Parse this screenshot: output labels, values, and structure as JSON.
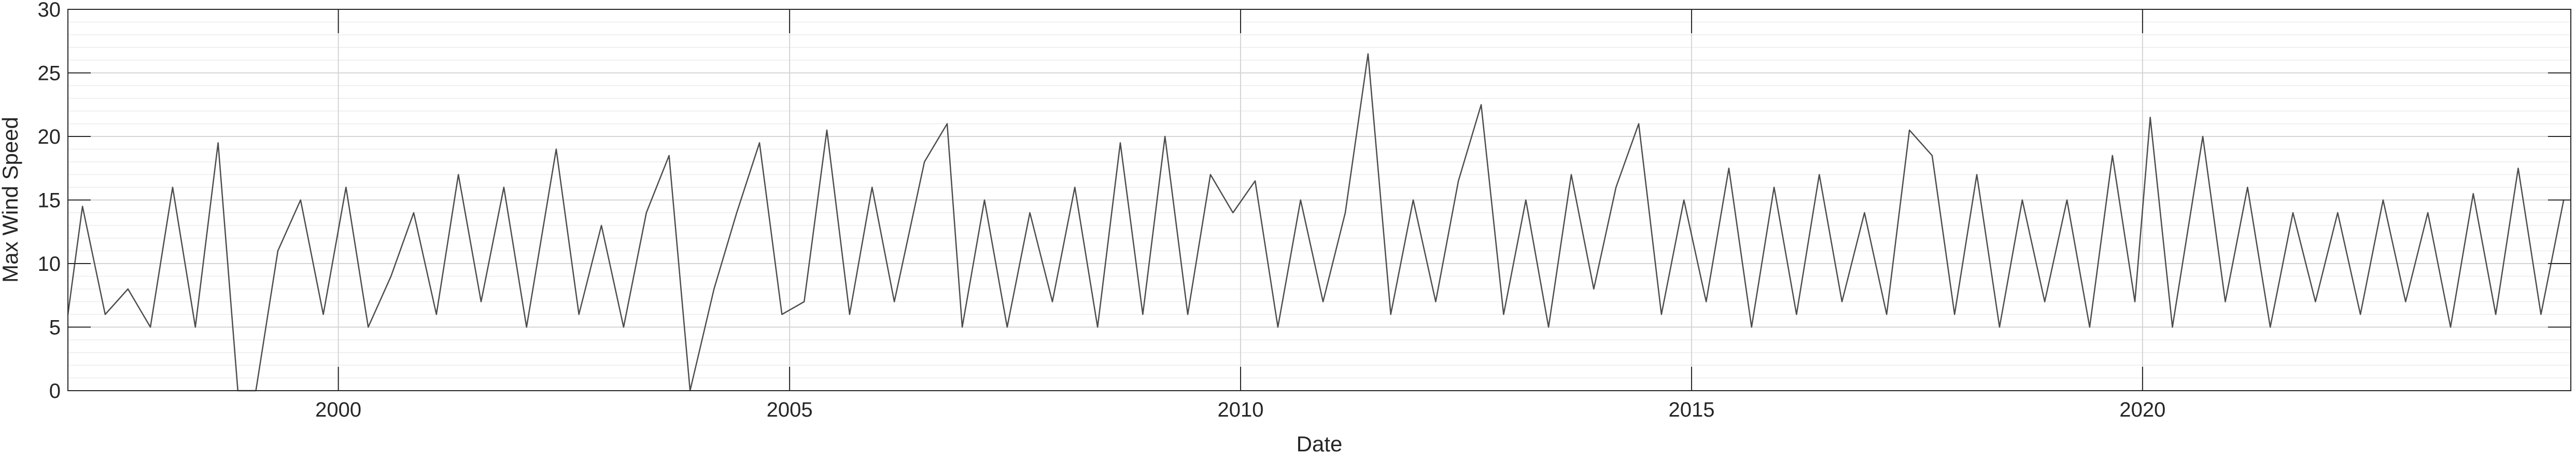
{
  "chart_data": {
    "type": "line",
    "title": "",
    "xlabel": "Date",
    "ylabel": "Max Wind Speed",
    "x_ticks": [
      "2000",
      "2005",
      "2010",
      "2015",
      "2020"
    ],
    "y_ticks": [
      "0",
      "5",
      "10",
      "15",
      "20",
      "25",
      "30"
    ],
    "xlim": [
      "1997-01-01",
      "2024-09-30"
    ],
    "ylim": [
      0,
      30
    ],
    "grid": true,
    "minor_grid": true,
    "legend": "none",
    "series": [
      {
        "color": "#4d4d4d",
        "points": [
          [
            "1997-01-01",
            6
          ],
          [
            "1997-03-01",
            14.5
          ],
          [
            "1997-06-01",
            6
          ],
          [
            "1997-09-01",
            8
          ],
          [
            "1997-12-01",
            5
          ],
          [
            "1998-03-01",
            16
          ],
          [
            "1998-06-01",
            5
          ],
          [
            "1998-09-01",
            19.5
          ],
          [
            "1998-11-20",
            0
          ],
          [
            "1999-02-01",
            0
          ],
          [
            "1999-05-01",
            11
          ],
          [
            "1999-08-01",
            15
          ],
          [
            "1999-11-01",
            6
          ],
          [
            "2000-02-01",
            16
          ],
          [
            "2000-05-01",
            5
          ],
          [
            "2000-08-01",
            9
          ],
          [
            "2000-11-01",
            14
          ],
          [
            "2001-02-01",
            6
          ],
          [
            "2001-05-01",
            17
          ],
          [
            "2001-08-01",
            7
          ],
          [
            "2001-11-01",
            16
          ],
          [
            "2002-02-01",
            5
          ],
          [
            "2002-06-01",
            19
          ],
          [
            "2002-09-01",
            6
          ],
          [
            "2002-12-01",
            13
          ],
          [
            "2003-03-01",
            5
          ],
          [
            "2003-06-01",
            14
          ],
          [
            "2003-09-01",
            18.5
          ],
          [
            "2003-11-25",
            0
          ],
          [
            "2004-03-01",
            8
          ],
          [
            "2004-06-01",
            14
          ],
          [
            "2004-09-01",
            19.5
          ],
          [
            "2004-12-01",
            6
          ],
          [
            "2005-03-01",
            7
          ],
          [
            "2005-06-01",
            20.5
          ],
          [
            "2005-09-01",
            6
          ],
          [
            "2005-12-01",
            16
          ],
          [
            "2006-03-01",
            7
          ],
          [
            "2006-07-01",
            18
          ],
          [
            "2006-10-01",
            21
          ],
          [
            "2006-12-01",
            5
          ],
          [
            "2007-03-01",
            15
          ],
          [
            "2007-06-01",
            5
          ],
          [
            "2007-09-01",
            14
          ],
          [
            "2007-12-01",
            7
          ],
          [
            "2008-03-01",
            16
          ],
          [
            "2008-06-01",
            5
          ],
          [
            "2008-09-01",
            19.5
          ],
          [
            "2008-12-01",
            6
          ],
          [
            "2009-03-01",
            20
          ],
          [
            "2009-06-01",
            6
          ],
          [
            "2009-09-01",
            17
          ],
          [
            "2009-12-01",
            14
          ],
          [
            "2010-03-01",
            16.5
          ],
          [
            "2010-06-01",
            5
          ],
          [
            "2010-09-01",
            15
          ],
          [
            "2010-12-01",
            7
          ],
          [
            "2011-03-01",
            14
          ],
          [
            "2011-06-01",
            26.5
          ],
          [
            "2011-09-01",
            6
          ],
          [
            "2011-12-01",
            15
          ],
          [
            "2012-03-01",
            7
          ],
          [
            "2012-06-01",
            16.5
          ],
          [
            "2012-09-01",
            22.5
          ],
          [
            "2012-12-01",
            6
          ],
          [
            "2013-03-01",
            15
          ],
          [
            "2013-06-01",
            5
          ],
          [
            "2013-09-01",
            17
          ],
          [
            "2013-12-01",
            8
          ],
          [
            "2014-03-01",
            16
          ],
          [
            "2014-06-01",
            21
          ],
          [
            "2014-09-01",
            6
          ],
          [
            "2014-12-01",
            15
          ],
          [
            "2015-03-01",
            7
          ],
          [
            "2015-06-01",
            17.5
          ],
          [
            "2015-09-01",
            5
          ],
          [
            "2015-12-01",
            16
          ],
          [
            "2016-03-01",
            6
          ],
          [
            "2016-06-01",
            17
          ],
          [
            "2016-09-01",
            7
          ],
          [
            "2016-12-01",
            14
          ],
          [
            "2017-03-01",
            6
          ],
          [
            "2017-06-01",
            20.5
          ],
          [
            "2017-09-01",
            18.5
          ],
          [
            "2017-12-01",
            6
          ],
          [
            "2018-03-01",
            17
          ],
          [
            "2018-06-01",
            5
          ],
          [
            "2018-09-01",
            15
          ],
          [
            "2018-12-01",
            7
          ],
          [
            "2019-03-01",
            15
          ],
          [
            "2019-06-01",
            5
          ],
          [
            "2019-09-01",
            18.5
          ],
          [
            "2019-12-01",
            7
          ],
          [
            "2020-02-01",
            21.5
          ],
          [
            "2020-05-01",
            5
          ],
          [
            "2020-09-01",
            20
          ],
          [
            "2020-12-01",
            7
          ],
          [
            "2021-03-01",
            16
          ],
          [
            "2021-06-01",
            5
          ],
          [
            "2021-09-01",
            14
          ],
          [
            "2021-12-01",
            7
          ],
          [
            "2022-03-01",
            14
          ],
          [
            "2022-06-01",
            6
          ],
          [
            "2022-09-01",
            15
          ],
          [
            "2022-12-01",
            7
          ],
          [
            "2023-03-01",
            14
          ],
          [
            "2023-06-01",
            5
          ],
          [
            "2023-09-01",
            15.5
          ],
          [
            "2023-12-01",
            6
          ],
          [
            "2024-03-01",
            17.5
          ],
          [
            "2024-06-01",
            6
          ],
          [
            "2024-09-01",
            15
          ]
        ]
      }
    ]
  }
}
